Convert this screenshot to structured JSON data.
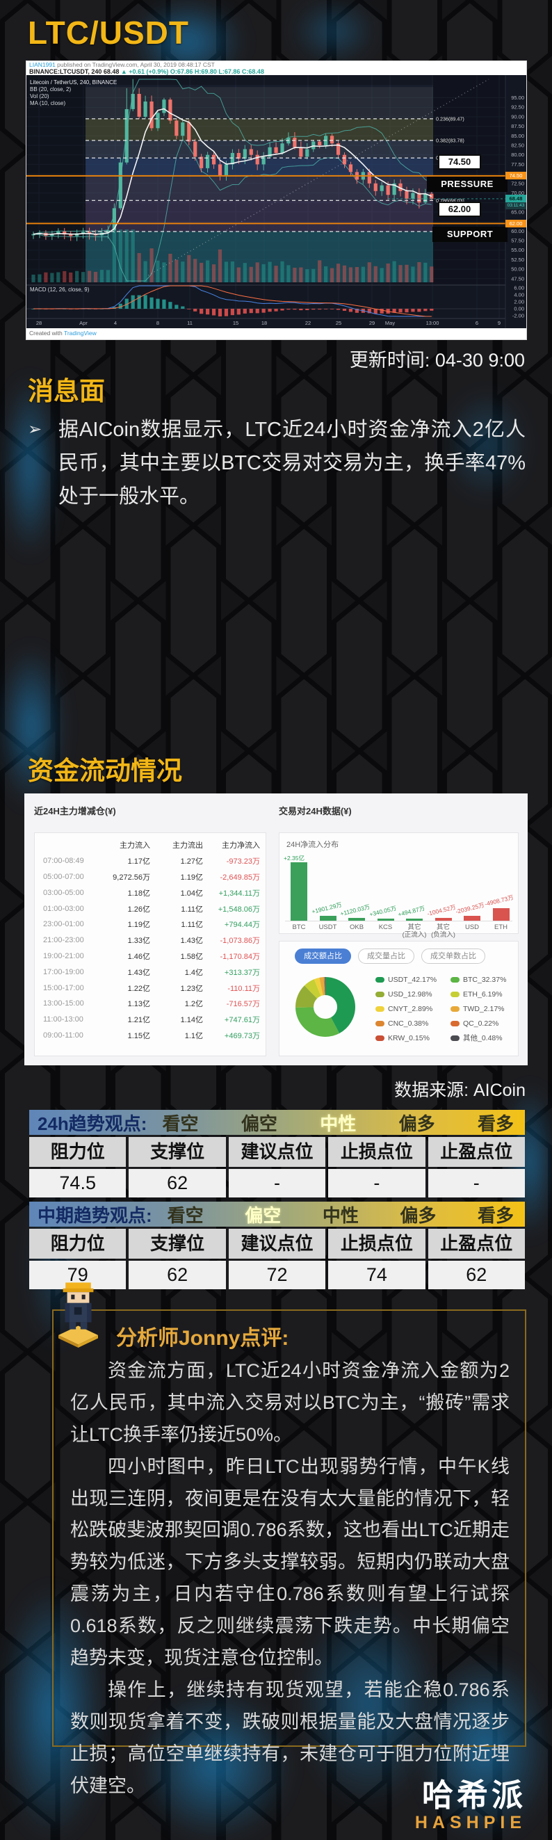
{
  "page": {
    "title": "LTC/USDT",
    "update_time": "更新时间: 04-30 9:00"
  },
  "chart": {
    "author": "LIAN1991",
    "published_rest": " published on TradingView.com, April 30, 2019 08:48:17 CST",
    "symbol_part": "BINANCE:LTCUSDT, 240 68.48 ",
    "change_part": "▲ +0.61 (+0.9%) ",
    "ohlc_part": "O:67.86 H:69.80 L:67.86 C:68.48",
    "legend": [
      "Litecoin / TetherUS, 240, BINANCE",
      "BB (20, close, 2)",
      "Vol (20)",
      "MA (10, close)"
    ],
    "macd_label": "MACD (12, 26, close, 9)",
    "watermark_prefix": "Created with ",
    "watermark_brand": "TradingView",
    "pressure_label": "PRESSURE",
    "support_label": "SUPPORT",
    "pressure_tag": "74.50",
    "support_tag": "62.00",
    "price_tag": "68.48",
    "countdown": "03:11:43"
  },
  "chart_data": {
    "type": "candlestick",
    "symbol": "BINANCE:LTCUSDT",
    "interval": "240",
    "last_ohlc": {
      "o": 67.86,
      "h": 69.8,
      "l": 67.86,
      "c": 68.48
    },
    "change": "+0.61 (+0.9%)",
    "pressure": 74.5,
    "support": 62.0,
    "fib_levels": [
      [
        "0.236(89.47)",
        89.47
      ],
      [
        "0.382(83.78)",
        83.78
      ],
      [
        "0.5(79.18)",
        79.18
      ],
      [
        "0.786(68.03)",
        68.03
      ],
      [
        "1(59.89)",
        59.89
      ]
    ],
    "bands": [
      [
        97.8,
        89.47,
        "#8a8c7a",
        0.14
      ],
      [
        89.47,
        83.78,
        "#80802c",
        0.36
      ],
      [
        83.78,
        79.18,
        "#5c6a80",
        0.3
      ],
      [
        79.18,
        74.58,
        "#2f518e",
        0.46
      ],
      [
        74.58,
        68.03,
        "#5e5574",
        0.36
      ],
      [
        68.03,
        59.89,
        "#6f4d85",
        0.32
      ],
      [
        59.89,
        46.5,
        "#1b7c86",
        0.48
      ]
    ],
    "y_min": 47.5,
    "y_max": 95,
    "y_step": 2.5,
    "y_skip": [
      75,
      67.5,
      62.5
    ],
    "macd_ticks": [
      6.0,
      4.0,
      2.0,
      0.0,
      -2.0
    ],
    "x_labels": [
      [
        "28",
        18
      ],
      [
        "Apr",
        82
      ],
      [
        "4",
        128
      ],
      [
        "8",
        189
      ],
      [
        "11",
        235
      ],
      [
        "15",
        301
      ],
      [
        "18",
        342
      ],
      [
        "22",
        405
      ],
      [
        "25",
        449
      ],
      [
        "29",
        497
      ],
      [
        "May",
        523
      ],
      [
        "13:00",
        584
      ],
      [
        "6",
        648
      ],
      [
        "9",
        680
      ]
    ],
    "closes": [
      59.2,
      59.5,
      58.8,
      59.3,
      59.9,
      59.1,
      58.7,
      59.4,
      59.8,
      59.2,
      58.9,
      59.6,
      60.2,
      66,
      78,
      92,
      96,
      90,
      94,
      87,
      91,
      94.5,
      89,
      85,
      88.5,
      83.5,
      79.5,
      76.5,
      80,
      77.5,
      74.5,
      77.5,
      80.5,
      79,
      81.5,
      80,
      77.5,
      79.5,
      82,
      80.5,
      83,
      84.5,
      82,
      79.5,
      81.5,
      83.5,
      82.5,
      85,
      83,
      80,
      77.5,
      75.5,
      73.5,
      75.5,
      72.5,
      70.5,
      72,
      69.5,
      72.5,
      70.5,
      68.5,
      70,
      67.5,
      69.8,
      68.48
    ],
    "spike_high": 99.9,
    "selection_x": [
      85,
      585
    ]
  },
  "news": {
    "heading": "消息面",
    "bullet_char": "➢",
    "text": "据AICoin数据显示，LTC近24小时资金净流入2亿人民币，其中主要以BTC交易对交易为主，换手率47%处于一般水平。"
  },
  "fundflow": {
    "heading": "资金流动情况",
    "source": "数据来源: AICoin",
    "left": {
      "title": "近24H主力增减仓(¥)",
      "headers": [
        "",
        "主力流入",
        "主力流出",
        "主力净流入"
      ],
      "rows": [
        {
          "time": "07:00-08:49",
          "in": "1.17亿",
          "out": "1.27亿",
          "net": "-973.23万"
        },
        {
          "time": "05:00-07:00",
          "in": "9,272.56万",
          "out": "1.19亿",
          "net": "-2,649.85万"
        },
        {
          "time": "03:00-05:00",
          "in": "1.18亿",
          "out": "1.04亿",
          "net": "+1,344.11万"
        },
        {
          "time": "01:00-03:00",
          "in": "1.26亿",
          "out": "1.11亿",
          "net": "+1,548.06万"
        },
        {
          "time": "23:00-01:00",
          "in": "1.19亿",
          "out": "1.11亿",
          "net": "+794.44万"
        },
        {
          "time": "21:00-23:00",
          "in": "1.33亿",
          "out": "1.43亿",
          "net": "-1,073.86万"
        },
        {
          "time": "19:00-21:00",
          "in": "1.46亿",
          "out": "1.58亿",
          "net": "-1,170.84万"
        },
        {
          "time": "17:00-19:00",
          "in": "1.43亿",
          "out": "1.4亿",
          "net": "+313.37万"
        },
        {
          "time": "15:00-17:00",
          "in": "1.22亿",
          "out": "1.23亿",
          "net": "-110.11万"
        },
        {
          "time": "13:00-15:00",
          "in": "1.13亿",
          "out": "1.2亿",
          "net": "-716.57万"
        },
        {
          "time": "11:00-13:00",
          "in": "1.21亿",
          "out": "1.14亿",
          "net": "+747.61万"
        },
        {
          "time": "09:00-11:00",
          "in": "1.15亿",
          "out": "1.1亿",
          "net": "+469.73万"
        }
      ]
    },
    "right": {
      "title": "交易对24H数据(¥)",
      "bar_title": "24H净流入分布",
      "bars": [
        {
          "label": "BTC",
          "value": "+2.35亿",
          "mag": 23500,
          "dir": "pos"
        },
        {
          "label": "USDT",
          "value": "+1901.29万",
          "mag": 1901,
          "dir": "pos"
        },
        {
          "label": "OKB",
          "value": "+1120.03万",
          "mag": 1120,
          "dir": "pos"
        },
        {
          "label": "KCS",
          "value": "+340.05万",
          "mag": 340,
          "dir": "pos"
        },
        {
          "label": "其它(正流入)",
          "value": "+494.87万",
          "mag": 495,
          "dir": "pos"
        },
        {
          "label": "其它(负流入)",
          "value": "-1004.52万",
          "mag": 1005,
          "dir": "neg"
        },
        {
          "label": "USD",
          "value": "-2039.25万",
          "mag": 2039,
          "dir": "neg"
        },
        {
          "label": "ETH",
          "value": "-4908.73万",
          "mag": 4909,
          "dir": "neg"
        }
      ],
      "tabs": [
        {
          "label": "成交额占比",
          "active": true
        },
        {
          "label": "成交量占比",
          "active": false
        },
        {
          "label": "成交单数占比",
          "active": false
        }
      ],
      "donut": [
        {
          "label": "USDT_42.17%",
          "pct": 42.17,
          "color": "#1e9a52"
        },
        {
          "label": "BTC_32.37%",
          "pct": 32.37,
          "color": "#5cb544"
        },
        {
          "label": "USD_12.98%",
          "pct": 12.98,
          "color": "#94ad35"
        },
        {
          "label": "ETH_6.19%",
          "pct": 6.19,
          "color": "#c6cf33"
        },
        {
          "label": "CNYT_2.89%",
          "pct": 2.89,
          "color": "#efd23c"
        },
        {
          "label": "TWD_2.17%",
          "pct": 2.17,
          "color": "#e8a93a"
        },
        {
          "label": "CNC_0.38%",
          "pct": 0.38,
          "color": "#dd8631"
        },
        {
          "label": "QC_0.22%",
          "pct": 0.22,
          "color": "#d96a30"
        },
        {
          "label": "KRW_0.15%",
          "pct": 0.15,
          "color": "#c94f35"
        },
        {
          "label": "其他_0.48%",
          "pct": 0.48,
          "color": "#4b4b52"
        }
      ]
    }
  },
  "trend": {
    "tables": [
      {
        "label": "24h趋势观点:",
        "options": [
          {
            "t": "看空",
            "hl": false
          },
          {
            "t": "偏空",
            "hl": false
          },
          {
            "t": "中性",
            "hl": true
          },
          {
            "t": "偏多",
            "hl": false
          },
          {
            "t": "看多",
            "hl": false
          }
        ],
        "headers": [
          "阻力位",
          "支撑位",
          "建议点位",
          "止损点位",
          "止盈点位"
        ],
        "values": [
          "74.5",
          "62",
          "-",
          "-",
          "-"
        ]
      },
      {
        "label": "中期趋势观点:",
        "options": [
          {
            "t": "看空",
            "hl": false
          },
          {
            "t": "偏空",
            "hl": true
          },
          {
            "t": "中性",
            "hl": false
          },
          {
            "t": "偏多",
            "hl": false
          },
          {
            "t": "看多",
            "hl": false
          }
        ],
        "headers": [
          "阻力位",
          "支撑位",
          "建议点位",
          "止损点位",
          "止盈点位"
        ],
        "values": [
          "79",
          "62",
          "72",
          "74",
          "62"
        ]
      }
    ]
  },
  "analyst": {
    "heading": "分析师Jonny点评:",
    "paragraphs": [
      "资金流方面，LTC近24小时资金净流入金额为2亿人民币，其中流入交易对以BTC为主，“搬砖”需求让LTC换手率仍接近50%。",
      "四小时图中，昨日LTC出现弱势行情，中午K线出现三连阴，夜间更是在没有太大量能的情况下，轻松跌破斐波那契回调0.786系数，这也看出LTC近期走势较为低迷，下方多头支撑较弱。短期内仍联动大盘震荡为主，日内若守住0.786系数则有望上行试探0.618系数，反之则继续震荡下跌走势。中长期偏空趋势未变，现货注意仓位控制。",
      "操作上，继续持有现货观望，若能企稳0.786系数则现货拿着不变，跌破则根据量能及大盘情况逐步止损；高位空单继续持有，未建仓可于阻力位附近埋伏建空。"
    ]
  },
  "logo": {
    "cn": "哈希派",
    "en": "HASHPIE"
  }
}
